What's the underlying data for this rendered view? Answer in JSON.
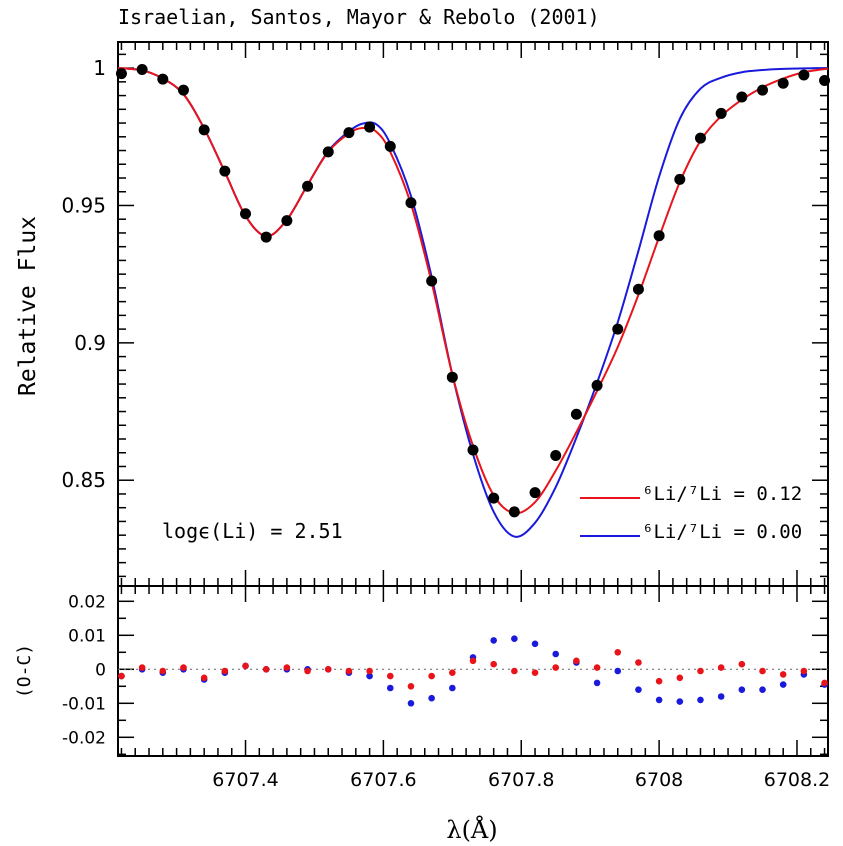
{
  "chart_data": [
    {
      "type": "line",
      "title": "Israelian, Santos, Mayor & Rebolo (2001)",
      "xlabel": "λ(Å)",
      "ylabel": "Relative Flux",
      "xlim": [
        6707.215,
        6708.245
      ],
      "ylim": [
        0.8115,
        1.0095
      ],
      "yticks": [
        0.85,
        0.9,
        0.95,
        1
      ],
      "ytick_labels": [
        "0.85",
        "0.9",
        "0.95",
        "1"
      ],
      "annotation": "logϵ(Li) = 2.51",
      "legend": [
        "⁶Li/⁷Li = 0.12",
        "⁶Li/⁷Li = 0.00"
      ],
      "legend_placement": "bottom-right",
      "series": [
        {
          "name": "observed",
          "style": "points",
          "color": "#000000",
          "x": [
            6707.22,
            6707.25,
            6707.28,
            6707.31,
            6707.34,
            6707.37,
            6707.4,
            6707.43,
            6707.46,
            6707.49,
            6707.52,
            6707.55,
            6707.58,
            6707.61,
            6707.64,
            6707.67,
            6707.7,
            6707.73,
            6707.76,
            6707.79,
            6707.82,
            6707.85,
            6707.88,
            6707.91,
            6707.94,
            6707.97,
            6708.0,
            6708.03,
            6708.06,
            6708.09,
            6708.12,
            6708.15,
            6708.18,
            6708.21,
            6708.24
          ],
          "y": [
            0.998,
            0.9995,
            0.996,
            0.992,
            0.9775,
            0.9625,
            0.947,
            0.9385,
            0.9445,
            0.957,
            0.9695,
            0.9765,
            0.9785,
            0.9715,
            0.951,
            0.9225,
            0.8875,
            0.861,
            0.8435,
            0.8385,
            0.8455,
            0.859,
            0.874,
            0.8845,
            0.905,
            0.9195,
            0.939,
            0.9595,
            0.9745,
            0.9835,
            0.9895,
            0.992,
            0.9945,
            0.9975,
            0.9955
          ]
        },
        {
          "name": "⁶Li/⁷Li = 0.12",
          "style": "line",
          "color": "#e8141a",
          "x": [
            6707.215,
            6707.25,
            6707.28,
            6707.31,
            6707.34,
            6707.37,
            6707.4,
            6707.43,
            6707.46,
            6707.49,
            6707.52,
            6707.55,
            6707.57,
            6707.59,
            6707.61,
            6707.64,
            6707.67,
            6707.7,
            6707.73,
            6707.76,
            6707.79,
            6707.82,
            6707.85,
            6707.88,
            6707.91,
            6707.94,
            6707.97,
            6708.0,
            6708.03,
            6708.06,
            6708.09,
            6708.12,
            6708.15,
            6708.18,
            6708.21,
            6708.245
          ],
          "y": [
            1.0,
            0.9992,
            0.9962,
            0.9905,
            0.978,
            0.9622,
            0.9462,
            0.9388,
            0.9448,
            0.9575,
            0.9695,
            0.9762,
            0.9782,
            0.9768,
            0.9695,
            0.9505,
            0.922,
            0.8885,
            0.8625,
            0.8445,
            0.838,
            0.842,
            0.8535,
            0.8675,
            0.8825,
            0.8985,
            0.9175,
            0.9385,
            0.9585,
            0.9735,
            0.9825,
            0.9885,
            0.993,
            0.9962,
            0.9985,
            0.9998
          ]
        },
        {
          "name": "⁶Li/⁷Li = 0.00",
          "style": "line",
          "color": "#1a1adc",
          "x": [
            6707.215,
            6707.25,
            6707.28,
            6707.31,
            6707.34,
            6707.37,
            6707.4,
            6707.43,
            6707.46,
            6707.49,
            6707.52,
            6707.55,
            6707.57,
            6707.59,
            6707.61,
            6707.64,
            6707.67,
            6707.7,
            6707.73,
            6707.76,
            6707.79,
            6707.82,
            6707.85,
            6707.88,
            6707.91,
            6707.94,
            6707.97,
            6708.0,
            6708.03,
            6708.06,
            6708.09,
            6708.12,
            6708.15,
            6708.18,
            6708.21,
            6708.245
          ],
          "y": [
            1.0,
            0.9992,
            0.9962,
            0.9905,
            0.978,
            0.9622,
            0.9462,
            0.9388,
            0.9448,
            0.9575,
            0.9698,
            0.977,
            0.9798,
            0.9795,
            0.9725,
            0.9535,
            0.924,
            0.8885,
            0.8595,
            0.8385,
            0.8295,
            0.8345,
            0.8475,
            0.8655,
            0.8855,
            0.9075,
            0.9335,
            0.9605,
            0.9815,
            0.9925,
            0.9965,
            0.9985,
            0.9993,
            0.9997,
            0.9999,
            1.0
          ]
        }
      ]
    },
    {
      "type": "scatter",
      "ylabel": "(O-C)",
      "xlabel": "λ(Å)",
      "xlim": [
        6707.215,
        6708.245
      ],
      "ylim": [
        -0.0255,
        0.0245
      ],
      "xticks": [
        6707.4,
        6707.6,
        6707.8,
        6708.0,
        6708.2
      ],
      "xtick_labels": [
        "6707.4",
        "6707.6",
        "6707.8",
        "6708",
        "6708.2"
      ],
      "yticks": [
        0.02,
        0.01,
        0,
        -0.01,
        -0.02
      ],
      "ytick_labels": [
        "0.02",
        "0.01",
        "0",
        "-0.01",
        "-0.02"
      ],
      "zero_line": "dotted",
      "series": [
        {
          "name": "⁶Li/⁷Li = 0.00",
          "color": "#1a1adc",
          "x": [
            6707.22,
            6707.25,
            6707.28,
            6707.31,
            6707.34,
            6707.37,
            6707.4,
            6707.43,
            6707.46,
            6707.49,
            6707.52,
            6707.55,
            6707.58,
            6707.61,
            6707.64,
            6707.67,
            6707.7,
            6707.73,
            6707.76,
            6707.79,
            6707.82,
            6707.85,
            6707.88,
            6707.91,
            6707.94,
            6707.97,
            6708.0,
            6708.03,
            6708.06,
            6708.09,
            6708.12,
            6708.15,
            6708.18,
            6708.21,
            6708.24
          ],
          "y": [
            -0.002,
            0.0,
            -0.001,
            0.0,
            -0.003,
            -0.001,
            0.001,
            0.0,
            0.0,
            0.0,
            0.0,
            -0.001,
            -0.002,
            -0.0055,
            -0.01,
            -0.0085,
            -0.0055,
            0.0035,
            0.0085,
            0.009,
            0.0075,
            0.0045,
            0.002,
            -0.004,
            -0.0005,
            -0.006,
            -0.009,
            -0.0095,
            -0.009,
            -0.008,
            -0.006,
            -0.006,
            -0.0045,
            -0.0015,
            -0.0045
          ]
        },
        {
          "name": "⁶Li/⁷Li = 0.12",
          "color": "#e8141a",
          "x": [
            6707.22,
            6707.25,
            6707.28,
            6707.31,
            6707.34,
            6707.37,
            6707.4,
            6707.43,
            6707.46,
            6707.49,
            6707.52,
            6707.55,
            6707.58,
            6707.61,
            6707.64,
            6707.67,
            6707.7,
            6707.73,
            6707.76,
            6707.79,
            6707.82,
            6707.85,
            6707.88,
            6707.91,
            6707.94,
            6707.97,
            6708.0,
            6708.03,
            6708.06,
            6708.09,
            6708.12,
            6708.15,
            6708.18,
            6708.21,
            6708.24
          ],
          "y": [
            -0.002,
            0.0005,
            -0.0005,
            0.0005,
            -0.0025,
            -0.0005,
            0.001,
            0.0,
            0.0005,
            -0.0005,
            0.0,
            -0.0005,
            -0.0005,
            -0.002,
            -0.005,
            -0.002,
            -0.001,
            0.0025,
            0.0015,
            -0.0005,
            -0.001,
            0.0005,
            0.0025,
            0.0005,
            0.005,
            0.002,
            -0.0035,
            -0.0025,
            -0.0005,
            0.0005,
            0.0015,
            -0.0005,
            -0.0015,
            -0.0005,
            -0.004
          ]
        }
      ]
    }
  ]
}
